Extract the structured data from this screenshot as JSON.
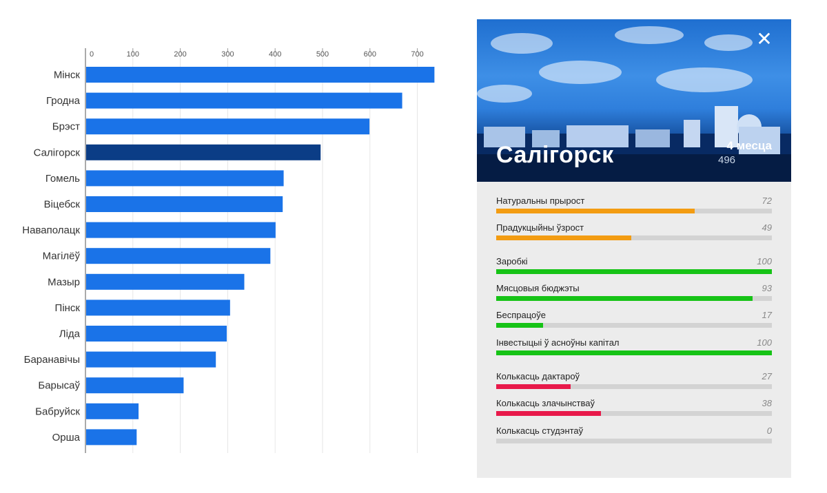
{
  "chart_data": {
    "type": "bar",
    "orientation": "horizontal",
    "categories": [
      "Мінск",
      "Гродна",
      "Брэст",
      "Салігорск",
      "Гомель",
      "Віцебск",
      "Наваполацк",
      "Магілёў",
      "Мазыр",
      "Пінск",
      "Ліда",
      "Баранавічы",
      "Барысаў",
      "Бабруйск",
      "Орша"
    ],
    "values": [
      736,
      668,
      599,
      496,
      418,
      416,
      401,
      390,
      335,
      305,
      298,
      275,
      207,
      112,
      108
    ],
    "highlight_index": 3,
    "xlim": [
      0,
      750
    ],
    "xticks": [
      0,
      100,
      200,
      300,
      400,
      500,
      600,
      700
    ],
    "axis_position": "top",
    "grid": true,
    "colors": {
      "bar": "#1a73e8",
      "highlight": "#0b3d86"
    }
  },
  "panel": {
    "close_icon": "close-icon",
    "city": "Салігорск",
    "period_label": "4 месца",
    "period_value": "496",
    "indicators": [
      {
        "name": "Натуральны прырост",
        "value": "72",
        "fraction": 0.72,
        "color": "#f39c12"
      },
      {
        "name": "Прадукцыйны ўзрост",
        "value": "49",
        "fraction": 0.49,
        "color": "#f39c12"
      },
      {
        "name": "Заробкі",
        "value": "100",
        "fraction": 1.0,
        "color": "#16c316"
      },
      {
        "name": "Мясцовыя бюджэты",
        "value": "93",
        "fraction": 0.93,
        "color": "#16c316"
      },
      {
        "name": "Беспрацоўе",
        "value": "17",
        "fraction": 0.17,
        "color": "#16c316"
      },
      {
        "name": "Інвестыцыі ў асноўны капітал",
        "value": "100",
        "fraction": 1.0,
        "color": "#16c316"
      },
      {
        "name": "Колькасць дактароў",
        "value": "27",
        "fraction": 0.27,
        "color": "#e8194a"
      },
      {
        "name": "Колькасць злачынстваў",
        "value": "38",
        "fraction": 0.38,
        "color": "#e8194a"
      },
      {
        "name": "Колькасць студэнтаў",
        "value": "0",
        "fraction": 0.0,
        "color": "#e8194a"
      }
    ]
  }
}
